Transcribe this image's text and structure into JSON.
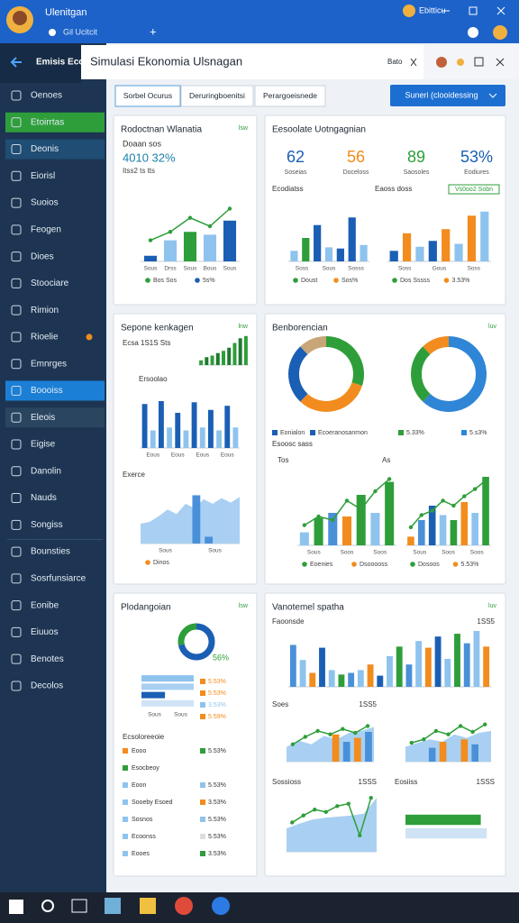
{
  "window": {
    "app_title": "Ulenitgan",
    "tab": "Gil Ucitcit",
    "new_tab": "+",
    "user": "Ebitticu"
  },
  "sidebar": {
    "title": "Emisis Econnie",
    "items": [
      "Oenoes",
      "Etoirrtas",
      "Deonis",
      "Eiorisl",
      "Suoios",
      "Feogen",
      "Dioes",
      "Stoociare",
      "Rimion",
      "Rioelie",
      "Emnrges",
      "Boooiss",
      "Eleois",
      "Eigise",
      "Danolin",
      "Nauds",
      "Songiss",
      "Bounsties",
      "Sosrfunsiarce",
      "Eonibe",
      "Eiuuos",
      "Benotes",
      "Decolos"
    ]
  },
  "header": {
    "title": "Simulasi Ekonomia Ulsnagan",
    "code": "Bato"
  },
  "tabs": [
    "Sorbel Ocurus",
    "Deruringboenitsi",
    "Perargoeisnede"
  ],
  "action_button": "Suneri (clooidessing",
  "cards": [
    {
      "title": "Rodoctnan Wlanatia",
      "badge": "lsw",
      "texts": [
        "Doaan sos",
        "4010 32%",
        "Itss2 ts tts"
      ],
      "charts": [
        {
          "type": "bar",
          "ylim": [
            0,
            100
          ],
          "values": [
            8,
            30,
            42,
            38,
            58
          ],
          "colors": [
            "#1a5fb4",
            "#8ec3ee",
            "#2e9e3a",
            "#8ec3ee",
            "#1a5fb4"
          ],
          "line": [
            30,
            42,
            62,
            50,
            75
          ],
          "line_color": "#2e9e3a",
          "categories": [
            "Sous",
            "Drss",
            "Sous",
            "Bous",
            "Sous"
          ],
          "legend": [
            {
              "label": "Bos Sos",
              "color": "#2e9e3a"
            },
            {
              "label": "5s%",
              "color": "#1a5fb4"
            }
          ]
        }
      ]
    },
    {
      "title": "Eesoolate Uotngagnian",
      "badge": "Vs0oo2 Sobn",
      "texts": [
        "Ecodiatss",
        "Eaoss doss"
      ],
      "stats": [
        {
          "value": 62,
          "label": "Soseias",
          "color": "#1a5fb4"
        },
        {
          "value": 56,
          "label": "Doceloss",
          "color": "#f28c1e"
        },
        {
          "value": 89,
          "label": "Saosoles",
          "color": "#2e9e3a"
        },
        {
          "value": "53%",
          "label": "Eodiures",
          "color": "#1a5fb4"
        }
      ],
      "charts": [
        {
          "type": "bar",
          "ylim": [
            0,
            100
          ],
          "values": [
            18,
            40,
            62,
            24,
            22,
            75,
            28
          ],
          "colors": [
            "#8ec3ee",
            "#2e9e3a",
            "#1a5fb4",
            "#8ec3ee",
            "#1a5fb4",
            "#1a5fb4",
            "#8ec3ee"
          ],
          "categories": [
            "Soss",
            "Sous",
            "Sosss"
          ],
          "legend": [
            {
              "label": "Doust",
              "color": "#2e9e3a"
            },
            {
              "label": "Sos%",
              "color": "#f28c1e"
            }
          ]
        },
        {
          "type": "bar",
          "ylim": [
            0,
            100
          ],
          "values": [
            18,
            48,
            25,
            35,
            55,
            30,
            78,
            85
          ],
          "colors": [
            "#1a5fb4",
            "#f28c1e",
            "#8ec3ee",
            "#1a5fb4",
            "#f28c1e",
            "#8ec3ee",
            "#f28c1e",
            "#8ec3ee"
          ],
          "categories": [
            "Soss",
            "Gous",
            "Soss"
          ],
          "legend": [
            {
              "label": "Dos Sssss",
              "color": "#2e9e3a"
            },
            {
              "label": "3.53%",
              "color": "#f28c1e"
            }
          ]
        }
      ]
    },
    {
      "title": "Sepone kenkagen",
      "badge": "lnw",
      "texts": [
        "Ecsa 1S1S Sts",
        "Ersoolao",
        "Exerce"
      ],
      "charts": [
        {
          "type": "bar",
          "ylim": [
            0,
            100
          ],
          "values": [
            15,
            25,
            30,
            38,
            45,
            55,
            70,
            85,
            92
          ],
          "colors": [
            "#2e9e3a",
            "#1d7a2c"
          ]
        },
        {
          "type": "bar",
          "ylim": [
            0,
            100
          ],
          "values": [
            75,
            30,
            80,
            35,
            60,
            30,
            78,
            35,
            65,
            30,
            72,
            35
          ],
          "colors": [
            "#1a5fb4",
            "#8ec3ee"
          ],
          "categories": [
            "Eous",
            "Eous",
            "Eous",
            "Eous"
          ]
        },
        {
          "type": "area",
          "ylim": [
            0,
            100
          ],
          "area": [
            35,
            38,
            48,
            60,
            52,
            70,
            62,
            78,
            70,
            80,
            72,
            82
          ],
          "area_color": "#a9d0f2",
          "values": [
            0,
            0,
            0,
            0,
            85,
            12,
            0,
            0
          ],
          "colors": [
            "#4a90d9"
          ],
          "categories": [
            "Sous",
            "Sous"
          ],
          "legend": [
            {
              "label": "Dinos",
              "color": "#f28c1e"
            }
          ]
        }
      ]
    },
    {
      "title": "Benborencian",
      "badge": "luv",
      "texts": [
        "Esoosc sass",
        "Tos",
        "As"
      ],
      "donuts": [
        {
          "values": [
            30,
            32,
            26,
            12
          ],
          "colors": [
            "#2e9e3a",
            "#f28c1e",
            "#1a5fb4",
            "#c8a678"
          ]
        },
        {
          "values": [
            62,
            26,
            12
          ],
          "colors": [
            "#2f86d6",
            "#2e9e3a",
            "#f28c1e"
          ]
        }
      ],
      "legend": [
        {
          "label": "Eonialon",
          "color": "#1a5fb4"
        },
        {
          "label": "Ecoeranosanmon",
          "color": "#1a5fb4"
        },
        {
          "label": "5.33%",
          "color": "#2e9e3a"
        },
        {
          "label": "5.s3%",
          "color": "#2f86d6"
        }
      ],
      "charts": [
        {
          "type": "bar",
          "ylim": [
            0,
            100
          ],
          "values": [
            18,
            38,
            45,
            40,
            70,
            45,
            88
          ],
          "colors": [
            "#8ec3ee",
            "#2e9e3a",
            "#4a90d9",
            "#f28c1e",
            "#2e9e3a",
            "#8ec3ee",
            "#2e9e3a"
          ],
          "line": [
            28,
            40,
            35,
            62,
            50,
            75,
            92
          ],
          "line_color": "#2e9e3a",
          "categories": [
            "Sous",
            "Soos",
            "Soos"
          ],
          "legend": [
            {
              "label": "Eoenies",
              "color": "#2e9e3a"
            },
            {
              "label": "Dsooooss",
              "color": "#f28c1e"
            }
          ]
        },
        {
          "type": "bar",
          "ylim": [
            0,
            100
          ],
          "values": [
            12,
            35,
            55,
            42,
            35,
            60,
            45,
            95
          ],
          "colors": [
            "#f28c1e",
            "#4a90d9",
            "#1a5fb4",
            "#8ec3ee",
            "#2e9e3a",
            "#f28c1e",
            "#8ec3ee",
            "#2e9e3a"
          ],
          "line": [
            25,
            42,
            48,
            62,
            55,
            68,
            78,
            90
          ],
          "line_color": "#2e9e3a",
          "categories": [
            "Sous",
            "Soos",
            "Soos"
          ],
          "legend": [
            {
              "label": "Dosoos",
              "color": "#2e9e3a"
            },
            {
              "label": "5.53%",
              "color": "#f28c1e"
            }
          ]
        }
      ]
    },
    {
      "title": "Plodangoian",
      "badge": "lsw",
      "texts": [
        "56%",
        "Ecsoloreeoie"
      ],
      "donuts": [
        {
          "values": [
            72,
            28
          ],
          "colors": [
            "#1a5fb4",
            "#2e9e3a"
          ]
        }
      ],
      "charts": [
        {
          "type": "hbar",
          "ylim": [
            0,
            100
          ],
          "values": [
            100,
            100,
            45,
            100
          ],
          "colors": [
            "#8ec3ee",
            "#a9d0f2",
            "#1a5fb4",
            "#cfe3f5"
          ],
          "categories": [
            "Sous",
            "Sous"
          ]
        }
      ],
      "pct": [
        {
          "label": "5.53%",
          "color": "#f28c1e"
        },
        {
          "label": "5.53%",
          "color": "#f28c1e"
        },
        {
          "label": "3.53%",
          "color": "#8ec3ee"
        },
        {
          "label": "5.59%",
          "color": "#f28c1e"
        }
      ],
      "rows": [
        {
          "label": "Eooo",
          "color": "#f28c1e",
          "value": "5.53%",
          "value_color": "#2e9e3a"
        },
        {
          "label": "Esocbeoy",
          "color": "#2e9e3a"
        },
        {
          "label": "Eoon",
          "color": "#8ec3ee",
          "value": "5.53%",
          "value_color": "#8ec3ee"
        },
        {
          "label": "Sooeby Esoed",
          "color": "#8ec3ee",
          "value": "3.53%",
          "value_color": "#f28c1e"
        },
        {
          "label": "Sosnos",
          "color": "#8ec3ee",
          "value": "5.53%",
          "value_color": "#8ec3ee"
        },
        {
          "label": "Ecoonss",
          "color": "#8ec3ee",
          "value": "5.53%",
          "value_color": "#dddddd"
        },
        {
          "label": "Eooes",
          "color": "#8ec3ee",
          "value": "3.53%",
          "value_color": "#2e9e3a"
        }
      ]
    },
    {
      "title": "Vanotemel spatha",
      "badge": "luv",
      "texts": [
        "Faoonsde",
        "1SS5",
        "Soes",
        "1SS5",
        "Sossioss",
        "1SSS",
        "Eosiiss",
        "1SSS"
      ],
      "charts": [
        {
          "type": "bar",
          "ylim": [
            0,
            100
          ],
          "values": [
            75,
            48,
            25,
            70,
            30,
            22,
            25,
            30,
            40,
            20,
            55,
            72,
            40,
            82,
            70,
            90,
            50,
            95,
            78,
            100,
            72
          ],
          "colors": [
            "#4a90d9",
            "#8ec3ee",
            "#f28c1e",
            "#1a5fb4",
            "#8ec3ee",
            "#2e9e3a"
          ]
        },
        {
          "type": "area",
          "ylim": [
            0,
            100
          ],
          "area": [
            30,
            42,
            35,
            52,
            45,
            58,
            62,
            70
          ],
          "area_color": "#a9d0f2",
          "values": [
            0,
            0,
            0,
            0,
            55,
            40,
            48,
            60
          ],
          "colors": [
            "#f28c1e",
            "#4a90d9"
          ],
          "line": [
            35,
            50,
            62,
            55,
            66,
            58,
            72
          ],
          "line_color": "#2e9e3a"
        },
        {
          "type": "area",
          "ylim": [
            0,
            100
          ],
          "area": [
            30,
            38,
            45,
            40,
            55,
            48,
            58,
            62
          ],
          "area_color": "#a9d0f2",
          "values": [
            0,
            0,
            28,
            40,
            0,
            45,
            35,
            0
          ],
          "colors": [
            "#4a90d9",
            "#f28c1e"
          ],
          "line": [
            38,
            45,
            62,
            55,
            72,
            60,
            75
          ],
          "line_color": "#2e9e3a"
        },
        {
          "type": "area",
          "ylim": [
            0,
            100
          ],
          "area": [
            40,
            48,
            55,
            58,
            60,
            62,
            65,
            92
          ],
          "area_color": "#a9d0f2",
          "line": [
            50,
            62,
            72,
            68,
            78,
            82,
            28,
            92
          ],
          "line_color": "#2e9e3a"
        },
        {
          "type": "hbar",
          "ylim": [
            0,
            100
          ],
          "values": [
            88,
            95
          ],
          "colors": [
            "#2e9e3a",
            "#cfe3f5"
          ]
        }
      ]
    }
  ]
}
